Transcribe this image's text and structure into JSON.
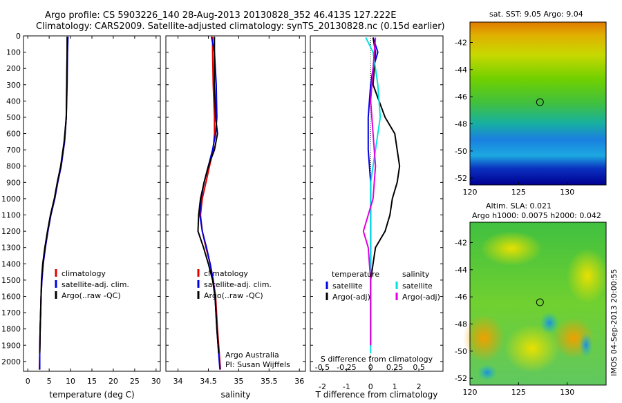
{
  "header": {
    "title_line1": "Argo profile: CS 5903226_140 28-Aug-2013 20130828_352 46.413S 127.222E",
    "title_line2": "Climatology: CARS2009. Satellite-adjusted climatology: synTS_20130828.nc (0.15d earlier)"
  },
  "credit": {
    "org": "Argo Australia",
    "pi": "PI: Susan Wijffels"
  },
  "stamp": "IMOS 04-Sep-2013 20:00:55",
  "colors": {
    "climatology": "#e00000",
    "satellite": "#0000e0",
    "argo": "#000000",
    "salinity_sat": "#00e0e0",
    "salinity_argo": "#e000e0"
  },
  "chart_data": [
    {
      "type": "line",
      "id": "temperature",
      "xlabel": "temperature (deg C)",
      "ylabel": "",
      "xlim": [
        -1,
        31
      ],
      "ylim": [
        2060,
        0
      ],
      "xticks": [
        0,
        5,
        10,
        15,
        20,
        25,
        30
      ],
      "yticks": [
        0,
        100,
        200,
        300,
        400,
        500,
        600,
        700,
        800,
        900,
        1000,
        1100,
        1200,
        1300,
        1400,
        1500,
        1600,
        1700,
        1800,
        1900,
        2000
      ],
      "legend": [
        "climatology",
        "satellite-adj. clim.",
        "Argo(..raw -QC)"
      ],
      "series": [
        {
          "name": "climatology",
          "color": "#e00000",
          "x": [
            9.3,
            9.2,
            9.1,
            9.0,
            8.6,
            7.8,
            7.0,
            6.3,
            5.4,
            4.7,
            4.1,
            3.6,
            3.3,
            3.1,
            3.0,
            2.9,
            2.8,
            2.7
          ],
          "y": [
            5,
            100,
            300,
            500,
            650,
            800,
            900,
            1000,
            1100,
            1200,
            1300,
            1400,
            1500,
            1600,
            1700,
            1800,
            1950,
            2050
          ]
        },
        {
          "name": "satellite-adj. clim.",
          "color": "#0000e0",
          "x": [
            9.4,
            9.3,
            9.2,
            9.0,
            8.6,
            7.8,
            7.0,
            6.3,
            5.4,
            4.7,
            4.1,
            3.6,
            3.3,
            3.1,
            3.0,
            2.9,
            2.8,
            2.8
          ],
          "y": [
            5,
            100,
            300,
            500,
            650,
            800,
            900,
            1000,
            1100,
            1200,
            1300,
            1400,
            1500,
            1600,
            1700,
            1800,
            1950,
            2050
          ]
        },
        {
          "name": "Argo(..raw -QC)",
          "color": "#000000",
          "x": [
            9.2,
            9.2,
            9.1,
            9.0,
            8.5,
            7.7,
            6.9,
            6.2,
            5.3,
            4.6,
            4.0,
            3.5,
            3.2,
            3.1,
            3.0,
            2.9,
            2.8
          ],
          "y": [
            5,
            100,
            300,
            500,
            650,
            800,
            900,
            1000,
            1100,
            1200,
            1300,
            1400,
            1500,
            1600,
            1700,
            1800,
            1950
          ]
        }
      ]
    },
    {
      "type": "line",
      "id": "salinity",
      "xlabel": "salinity",
      "xlim": [
        33.8,
        36.1
      ],
      "ylim": [
        2060,
        0
      ],
      "xticks": [
        34,
        34.5,
        35,
        35.5,
        36
      ],
      "legend": [
        "climatology",
        "satellite-adj. clim.",
        "Argo(..raw -QC)"
      ],
      "series": [
        {
          "name": "climatology",
          "color": "#e00000",
          "x": [
            34.57,
            34.57,
            34.58,
            34.6,
            34.6,
            34.58,
            34.52,
            34.46,
            34.4,
            34.37,
            34.4,
            34.46,
            34.53,
            34.58,
            34.62,
            34.65,
            34.68,
            34.7
          ],
          "y": [
            5,
            100,
            300,
            500,
            600,
            700,
            800,
            900,
            1000,
            1100,
            1200,
            1300,
            1400,
            1500,
            1600,
            1800,
            1950,
            2050
          ]
        },
        {
          "name": "satellite-adj. clim.",
          "color": "#0000e0",
          "x": [
            34.55,
            34.6,
            34.63,
            34.64,
            34.62,
            34.57,
            34.5,
            34.43,
            34.38,
            34.36,
            34.4,
            34.47,
            34.53,
            34.58,
            34.61,
            34.64,
            34.67,
            34.69
          ],
          "y": [
            5,
            100,
            300,
            500,
            600,
            700,
            800,
            900,
            1000,
            1100,
            1200,
            1300,
            1400,
            1500,
            1600,
            1800,
            1950,
            2050
          ]
        },
        {
          "name": "Argo(..raw -QC)",
          "color": "#000000",
          "x": [
            34.6,
            34.6,
            34.6,
            34.62,
            34.65,
            34.6,
            34.5,
            34.43,
            34.37,
            34.34,
            34.33,
            34.42,
            34.5,
            34.57,
            34.61,
            34.64,
            34.67
          ],
          "y": [
            5,
            100,
            300,
            500,
            600,
            700,
            800,
            900,
            1000,
            1100,
            1200,
            1300,
            1400,
            1500,
            1600,
            1800,
            1950
          ]
        }
      ]
    },
    {
      "type": "line",
      "id": "difference",
      "xlabel": "T difference from climatology",
      "xlabel_top": "S difference from climatology",
      "xlim": [
        -2.5,
        3
      ],
      "ylim": [
        2060,
        0
      ],
      "xticks_T": [
        -2,
        -1,
        0,
        1,
        2
      ],
      "xticks_S": [
        "-0.5",
        "-0.25",
        "0",
        "0.25",
        "0.5"
      ],
      "legend_groups": {
        "temperature": {
          "title": "temperature",
          "items": [
            "satellite",
            "Argo(-adj)"
          ]
        },
        "salinity": {
          "title": "salinity",
          "items": [
            "satellite",
            "Argo(-adj)"
          ]
        }
      },
      "series": [
        {
          "name": "temperature satellite",
          "color": "#0000e0",
          "x": [
            0.1,
            0.3,
            0.1,
            0,
            -0.1,
            -0.1,
            0,
            0,
            0,
            0,
            0,
            0
          ],
          "y": [
            10,
            100,
            200,
            300,
            500,
            700,
            900,
            1100,
            1300,
            1500,
            1700,
            1900
          ]
        },
        {
          "name": "temperature Argo(-adj)",
          "color": "#000000",
          "x": [
            0.1,
            0.2,
            0.1,
            0.6,
            1.0,
            1.2,
            1.1,
            0.9,
            0.8,
            0.6,
            0.2,
            0,
            0,
            0
          ],
          "y": [
            10,
            100,
            300,
            500,
            600,
            800,
            900,
            1000,
            1100,
            1200,
            1300,
            1500,
            1700,
            1900
          ]
        },
        {
          "name": "salinity satellite",
          "color": "#00e0e0",
          "x": [
            -0.2,
            0.1,
            0.3,
            0.4,
            0.2,
            0,
            0,
            0,
            0,
            0,
            0,
            0
          ],
          "y": [
            10,
            100,
            300,
            500,
            700,
            900,
            1100,
            1200,
            1400,
            1600,
            1800,
            1950
          ]
        },
        {
          "name": "salinity Argo(-adj)",
          "color": "#e000e0",
          "x": [
            0.2,
            0.1,
            0,
            0.1,
            0.2,
            0.1,
            -0.1,
            -0.3,
            -0.1,
            0,
            0
          ],
          "y": [
            10,
            200,
            400,
            600,
            800,
            1000,
            1100,
            1200,
            1300,
            1500,
            1900
          ]
        }
      ]
    },
    {
      "type": "heatmap",
      "id": "sst_map",
      "title": "sat. SST: 9.05  Argo: 9.04",
      "xticks": [
        120,
        125,
        130
      ],
      "yticks": [
        -42,
        -44,
        -46,
        -48,
        -50,
        -52
      ],
      "xlim": [
        120,
        134
      ],
      "ylim": [
        -52.5,
        -40.5
      ],
      "marker": {
        "lon": 127.2,
        "lat": -46.4
      }
    },
    {
      "type": "heatmap",
      "id": "sla_map",
      "title_line1": "Altim. SLA: 0.021",
      "title_line2": "Argo h1000: 0.0075 h2000: 0.042",
      "xticks": [
        120,
        125,
        130
      ],
      "yticks": [
        -42,
        -44,
        -46,
        -48,
        -50,
        -52
      ],
      "xlim": [
        120,
        134
      ],
      "ylim": [
        -52.5,
        -40.5
      ],
      "marker": {
        "lon": 127.2,
        "lat": -46.4
      }
    }
  ]
}
